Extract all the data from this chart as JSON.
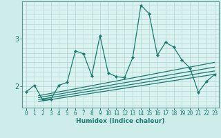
{
  "xlabel": "Humidex (Indice chaleur)",
  "bg_color": "#ceecea",
  "plot_bg_color": "#daf2f0",
  "line_color": "#1a7a6e",
  "grid_color": "#b8dbd9",
  "spine_color": "#5a9a90",
  "xlim": [
    -0.5,
    23.5
  ],
  "ylim": [
    1.55,
    3.78
  ],
  "yticks": [
    2,
    3
  ],
  "xticks": [
    0,
    1,
    2,
    3,
    4,
    5,
    6,
    7,
    8,
    9,
    10,
    11,
    12,
    13,
    14,
    15,
    16,
    17,
    18,
    19,
    20,
    21,
    22,
    23
  ],
  "data_x": [
    0,
    1,
    2,
    3,
    4,
    5,
    6,
    7,
    8,
    9,
    10,
    11,
    12,
    13,
    14,
    15,
    16,
    17,
    18,
    19,
    20,
    21,
    22,
    23
  ],
  "data_y": [
    1.88,
    2.02,
    1.72,
    1.73,
    2.02,
    2.08,
    2.74,
    2.68,
    2.22,
    3.06,
    2.28,
    2.2,
    2.18,
    2.6,
    3.7,
    3.52,
    2.65,
    2.92,
    2.82,
    2.55,
    2.38,
    1.87,
    2.1,
    2.25
  ],
  "trend_lines": [
    {
      "x0": 1.5,
      "y0": 1.68,
      "x1": 23,
      "y1": 2.25
    },
    {
      "x0": 1.5,
      "y0": 1.72,
      "x1": 23,
      "y1": 2.32
    },
    {
      "x0": 1.5,
      "y0": 1.76,
      "x1": 23,
      "y1": 2.4
    },
    {
      "x0": 1.5,
      "y0": 1.8,
      "x1": 23,
      "y1": 2.5
    }
  ],
  "tick_fontsize": 5.5,
  "label_fontsize": 6.5
}
